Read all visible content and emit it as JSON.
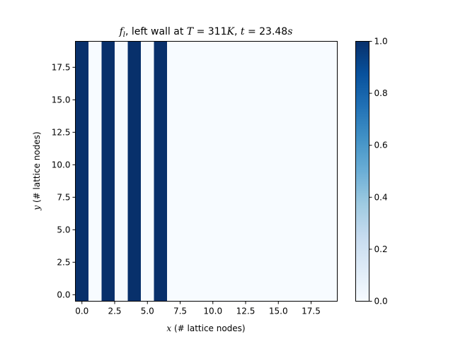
{
  "chart_data": {
    "type": "heatmap",
    "title": {
      "prefix": "f",
      "subscript": "l",
      "mid": ", left wall at ",
      "T_symbol": "T",
      "T_value": " = 311",
      "T_unit": "K",
      "sep": ", ",
      "t_symbol": "t",
      "t_value": " = 23.48",
      "t_unit": "s"
    },
    "xlabel": {
      "symbol": "x",
      "text": " (# lattice nodes)"
    },
    "ylabel": {
      "symbol": "y",
      "text": " (# lattice nodes)"
    },
    "grid_size": [
      20,
      20
    ],
    "xlim": [
      -0.5,
      19.5
    ],
    "ylim": [
      -0.5,
      19.5
    ],
    "x_ticks": [
      "0.0",
      "2.5",
      "5.0",
      "7.5",
      "10.0",
      "12.5",
      "15.0",
      "17.5"
    ],
    "y_ticks": [
      "0.0",
      "2.5",
      "5.0",
      "7.5",
      "10.0",
      "12.5",
      "15.0",
      "17.5"
    ],
    "x_tick_values": [
      0,
      2.5,
      5,
      7.5,
      10,
      12.5,
      15,
      17.5
    ],
    "y_tick_values": [
      0,
      2.5,
      5,
      7.5,
      10,
      12.5,
      15,
      17.5
    ],
    "column_values": [
      1,
      0,
      1,
      0,
      1,
      0,
      1,
      0,
      0,
      0,
      0,
      0,
      0,
      0,
      0,
      0,
      0,
      0,
      0,
      0
    ],
    "colorbar": {
      "colormap": "Blues",
      "range": [
        0,
        1
      ],
      "ticks": [
        "0.0",
        "0.2",
        "0.4",
        "0.6",
        "0.8",
        "1.0"
      ],
      "tick_values": [
        0,
        0.2,
        0.4,
        0.6,
        0.8,
        1.0
      ]
    },
    "colors": {
      "low": "#f7fbff",
      "high": "#08306b"
    },
    "grid": false
  }
}
